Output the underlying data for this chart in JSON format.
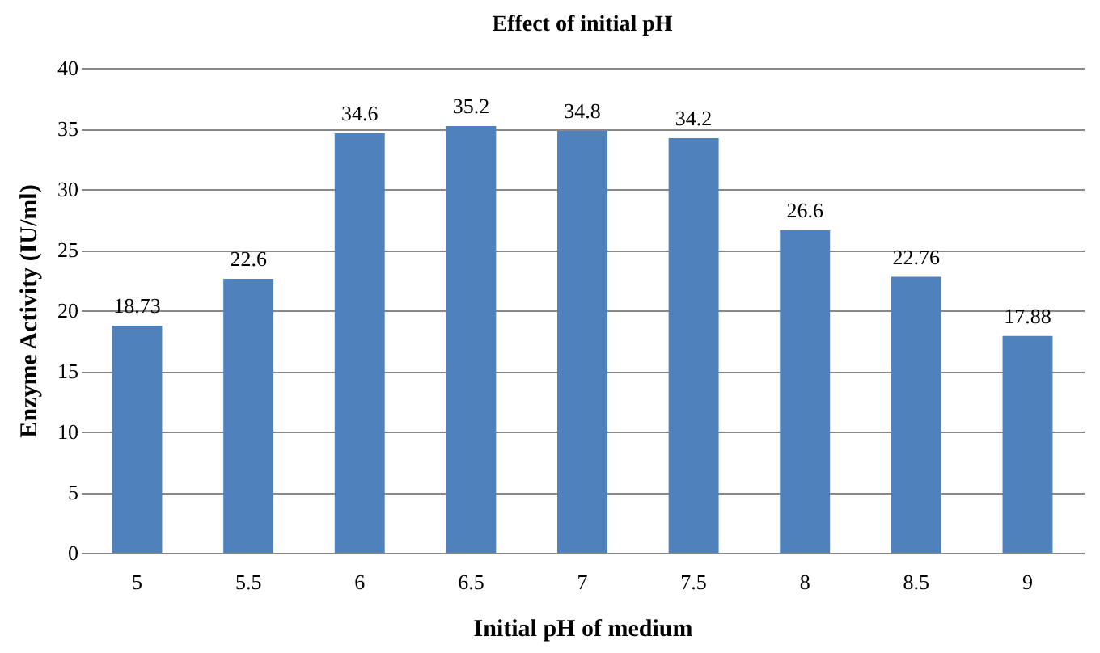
{
  "chart_data": {
    "type": "bar",
    "title": "Effect of initial pH",
    "xlabel": "Initial pH of medium",
    "ylabel": "Enzyme Activity (IU/ml)",
    "categories": [
      "5",
      "5.5",
      "6",
      "6.5",
      "7",
      "7.5",
      "8",
      "8.5",
      "9"
    ],
    "values": [
      18.73,
      22.6,
      34.6,
      35.2,
      34.8,
      34.2,
      26.6,
      22.76,
      17.88
    ],
    "color": "#4f81bd",
    "ylim": [
      0,
      40
    ],
    "yticks": [
      0,
      5,
      10,
      15,
      20,
      25,
      30,
      35,
      40
    ],
    "grid": "y",
    "data_labels": true
  }
}
